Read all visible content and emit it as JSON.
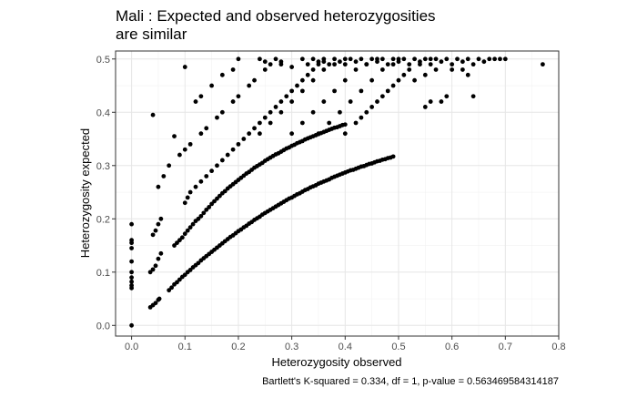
{
  "chart_data": {
    "type": "scatter",
    "title_lines": [
      "Mali : Expected and observed heterozygosities",
      "are similar"
    ],
    "xlabel": "Heterozygosity observed",
    "ylabel": "Heterozygosity expected",
    "caption": "Bartlett's K-squared = 0.334, df = 1, p-value = 0.563469584314187",
    "xlim": [
      -0.03,
      0.8
    ],
    "ylim": [
      -0.02,
      0.515
    ],
    "x_ticks": [
      0.0,
      0.1,
      0.2,
      0.3,
      0.4,
      0.5,
      0.6,
      0.7,
      0.8
    ],
    "x_tick_labels": [
      "0.0",
      "0.1",
      "0.2",
      "0.3",
      "0.4",
      "0.5",
      "0.6",
      "0.7",
      "0.8"
    ],
    "y_ticks": [
      0.0,
      0.1,
      0.2,
      0.3,
      0.4,
      0.5
    ],
    "y_tick_labels": [
      "0.0",
      "0.1",
      "0.2",
      "0.3",
      "0.4",
      "0.5"
    ],
    "grid": true,
    "point_color": "#000000",
    "panel_border_color": "#333333",
    "grid_major_color": "#e6e6e6",
    "grid_minor_color": "#f2f2f2",
    "points": [
      [
        0.0,
        0.0
      ],
      [
        0.0,
        0.07
      ],
      [
        0.0,
        0.075
      ],
      [
        0.0,
        0.082
      ],
      [
        0.0,
        0.09
      ],
      [
        0.0,
        0.1
      ],
      [
        0.0,
        0.12
      ],
      [
        0.0,
        0.145
      ],
      [
        0.0,
        0.155
      ],
      [
        0.0,
        0.16
      ],
      [
        0.0,
        0.19
      ],
      [
        0.035,
        0.034
      ],
      [
        0.04,
        0.038
      ],
      [
        0.045,
        0.042
      ],
      [
        0.05,
        0.048
      ],
      [
        0.052,
        0.05
      ],
      [
        0.07,
        0.066
      ],
      [
        0.075,
        0.071
      ],
      [
        0.08,
        0.077
      ],
      [
        0.085,
        0.081
      ],
      [
        0.09,
        0.086
      ],
      [
        0.095,
        0.091
      ],
      [
        0.1,
        0.095
      ],
      [
        0.105,
        0.1
      ],
      [
        0.11,
        0.104
      ],
      [
        0.115,
        0.109
      ],
      [
        0.12,
        0.113
      ],
      [
        0.125,
        0.117
      ],
      [
        0.13,
        0.122
      ],
      [
        0.135,
        0.126
      ],
      [
        0.14,
        0.13
      ],
      [
        0.145,
        0.134
      ],
      [
        0.15,
        0.138
      ],
      [
        0.155,
        0.142
      ],
      [
        0.16,
        0.146
      ],
      [
        0.165,
        0.15
      ],
      [
        0.17,
        0.154
      ],
      [
        0.175,
        0.158
      ],
      [
        0.18,
        0.162
      ],
      [
        0.185,
        0.166
      ],
      [
        0.19,
        0.169
      ],
      [
        0.195,
        0.173
      ],
      [
        0.2,
        0.177
      ],
      [
        0.205,
        0.18
      ],
      [
        0.21,
        0.184
      ],
      [
        0.215,
        0.187
      ],
      [
        0.22,
        0.191
      ],
      [
        0.225,
        0.194
      ],
      [
        0.23,
        0.198
      ],
      [
        0.235,
        0.201
      ],
      [
        0.24,
        0.204
      ],
      [
        0.245,
        0.208
      ],
      [
        0.25,
        0.211
      ],
      [
        0.255,
        0.214
      ],
      [
        0.26,
        0.217
      ],
      [
        0.265,
        0.22
      ],
      [
        0.27,
        0.223
      ],
      [
        0.275,
        0.226
      ],
      [
        0.28,
        0.229
      ],
      [
        0.285,
        0.232
      ],
      [
        0.29,
        0.235
      ],
      [
        0.295,
        0.238
      ],
      [
        0.3,
        0.24
      ],
      [
        0.305,
        0.243
      ],
      [
        0.31,
        0.246
      ],
      [
        0.315,
        0.248
      ],
      [
        0.32,
        0.251
      ],
      [
        0.325,
        0.254
      ],
      [
        0.33,
        0.256
      ],
      [
        0.335,
        0.259
      ],
      [
        0.34,
        0.261
      ],
      [
        0.345,
        0.263
      ],
      [
        0.35,
        0.266
      ],
      [
        0.355,
        0.268
      ],
      [
        0.36,
        0.27
      ],
      [
        0.365,
        0.272
      ],
      [
        0.37,
        0.274
      ],
      [
        0.375,
        0.277
      ],
      [
        0.38,
        0.279
      ],
      [
        0.385,
        0.281
      ],
      [
        0.39,
        0.283
      ],
      [
        0.395,
        0.285
      ],
      [
        0.4,
        0.287
      ],
      [
        0.405,
        0.289
      ],
      [
        0.41,
        0.291
      ],
      [
        0.415,
        0.292
      ],
      [
        0.42,
        0.294
      ],
      [
        0.425,
        0.296
      ],
      [
        0.43,
        0.298
      ],
      [
        0.435,
        0.299
      ],
      [
        0.44,
        0.301
      ],
      [
        0.445,
        0.303
      ],
      [
        0.45,
        0.304
      ],
      [
        0.455,
        0.306
      ],
      [
        0.46,
        0.308
      ],
      [
        0.465,
        0.309
      ],
      [
        0.47,
        0.311
      ],
      [
        0.475,
        0.312
      ],
      [
        0.48,
        0.314
      ],
      [
        0.485,
        0.315
      ],
      [
        0.49,
        0.317
      ],
      [
        0.035,
        0.1
      ],
      [
        0.04,
        0.105
      ],
      [
        0.045,
        0.112
      ],
      [
        0.05,
        0.125
      ],
      [
        0.055,
        0.135
      ],
      [
        0.04,
        0.17
      ],
      [
        0.045,
        0.178
      ],
      [
        0.05,
        0.19
      ],
      [
        0.055,
        0.2
      ],
      [
        0.08,
        0.15
      ],
      [
        0.085,
        0.155
      ],
      [
        0.09,
        0.16
      ],
      [
        0.095,
        0.165
      ],
      [
        0.1,
        0.172
      ],
      [
        0.105,
        0.178
      ],
      [
        0.11,
        0.184
      ],
      [
        0.115,
        0.19
      ],
      [
        0.12,
        0.196
      ],
      [
        0.125,
        0.2
      ],
      [
        0.13,
        0.205
      ],
      [
        0.135,
        0.211
      ],
      [
        0.14,
        0.217
      ],
      [
        0.145,
        0.222
      ],
      [
        0.15,
        0.228
      ],
      [
        0.155,
        0.233
      ],
      [
        0.16,
        0.238
      ],
      [
        0.165,
        0.243
      ],
      [
        0.17,
        0.248
      ],
      [
        0.175,
        0.252
      ],
      [
        0.18,
        0.257
      ],
      [
        0.185,
        0.261
      ],
      [
        0.19,
        0.265
      ],
      [
        0.195,
        0.269
      ],
      [
        0.2,
        0.273
      ],
      [
        0.205,
        0.277
      ],
      [
        0.21,
        0.281
      ],
      [
        0.215,
        0.285
      ],
      [
        0.22,
        0.288
      ],
      [
        0.225,
        0.292
      ],
      [
        0.23,
        0.296
      ],
      [
        0.235,
        0.299
      ],
      [
        0.24,
        0.302
      ],
      [
        0.245,
        0.305
      ],
      [
        0.25,
        0.309
      ],
      [
        0.255,
        0.312
      ],
      [
        0.26,
        0.315
      ],
      [
        0.265,
        0.318
      ],
      [
        0.27,
        0.321
      ],
      [
        0.275,
        0.323
      ],
      [
        0.28,
        0.326
      ],
      [
        0.285,
        0.329
      ],
      [
        0.29,
        0.332
      ],
      [
        0.295,
        0.334
      ],
      [
        0.3,
        0.337
      ],
      [
        0.305,
        0.339
      ],
      [
        0.31,
        0.342
      ],
      [
        0.315,
        0.344
      ],
      [
        0.32,
        0.346
      ],
      [
        0.325,
        0.349
      ],
      [
        0.33,
        0.351
      ],
      [
        0.335,
        0.353
      ],
      [
        0.34,
        0.355
      ],
      [
        0.345,
        0.357
      ],
      [
        0.35,
        0.359
      ],
      [
        0.355,
        0.361
      ],
      [
        0.36,
        0.363
      ],
      [
        0.365,
        0.365
      ],
      [
        0.37,
        0.367
      ],
      [
        0.375,
        0.369
      ],
      [
        0.38,
        0.371
      ],
      [
        0.385,
        0.372
      ],
      [
        0.39,
        0.374
      ],
      [
        0.395,
        0.376
      ],
      [
        0.4,
        0.377
      ],
      [
        0.1,
        0.23
      ],
      [
        0.105,
        0.24
      ],
      [
        0.11,
        0.25
      ],
      [
        0.12,
        0.26
      ],
      [
        0.13,
        0.27
      ],
      [
        0.14,
        0.28
      ],
      [
        0.15,
        0.29
      ],
      [
        0.16,
        0.3
      ],
      [
        0.17,
        0.31
      ],
      [
        0.18,
        0.32
      ],
      [
        0.19,
        0.33
      ],
      [
        0.2,
        0.34
      ],
      [
        0.21,
        0.35
      ],
      [
        0.22,
        0.36
      ],
      [
        0.23,
        0.37
      ],
      [
        0.24,
        0.38
      ],
      [
        0.25,
        0.39
      ],
      [
        0.26,
        0.4
      ],
      [
        0.27,
        0.41
      ],
      [
        0.28,
        0.42
      ],
      [
        0.29,
        0.43
      ],
      [
        0.3,
        0.44
      ],
      [
        0.31,
        0.45
      ],
      [
        0.32,
        0.46
      ],
      [
        0.33,
        0.47
      ],
      [
        0.34,
        0.48
      ],
      [
        0.35,
        0.49
      ],
      [
        0.36,
        0.495
      ],
      [
        0.05,
        0.26
      ],
      [
        0.06,
        0.28
      ],
      [
        0.07,
        0.3
      ],
      [
        0.09,
        0.32
      ],
      [
        0.1,
        0.33
      ],
      [
        0.11,
        0.34
      ],
      [
        0.13,
        0.36
      ],
      [
        0.14,
        0.37
      ],
      [
        0.16,
        0.39
      ],
      [
        0.17,
        0.4
      ],
      [
        0.19,
        0.42
      ],
      [
        0.2,
        0.43
      ],
      [
        0.22,
        0.45
      ],
      [
        0.23,
        0.46
      ],
      [
        0.25,
        0.48
      ],
      [
        0.26,
        0.49
      ],
      [
        0.28,
        0.495
      ],
      [
        0.04,
        0.395
      ],
      [
        0.08,
        0.355
      ],
      [
        0.1,
        0.485
      ],
      [
        0.12,
        0.42
      ],
      [
        0.13,
        0.43
      ],
      [
        0.15,
        0.45
      ],
      [
        0.17,
        0.47
      ],
      [
        0.19,
        0.48
      ],
      [
        0.2,
        0.5
      ],
      [
        0.24,
        0.5
      ],
      [
        0.25,
        0.495
      ],
      [
        0.27,
        0.5
      ],
      [
        0.28,
        0.49
      ],
      [
        0.24,
        0.36
      ],
      [
        0.26,
        0.38
      ],
      [
        0.28,
        0.4
      ],
      [
        0.3,
        0.42
      ],
      [
        0.32,
        0.44
      ],
      [
        0.34,
        0.46
      ],
      [
        0.36,
        0.48
      ],
      [
        0.38,
        0.49
      ],
      [
        0.4,
        0.5
      ],
      [
        0.3,
        0.36
      ],
      [
        0.32,
        0.38
      ],
      [
        0.34,
        0.4
      ],
      [
        0.36,
        0.42
      ],
      [
        0.38,
        0.44
      ],
      [
        0.4,
        0.46
      ],
      [
        0.42,
        0.48
      ],
      [
        0.44,
        0.49
      ],
      [
        0.46,
        0.5
      ],
      [
        0.35,
        0.36
      ],
      [
        0.37,
        0.38
      ],
      [
        0.39,
        0.4
      ],
      [
        0.41,
        0.42
      ],
      [
        0.43,
        0.44
      ],
      [
        0.45,
        0.46
      ],
      [
        0.47,
        0.48
      ],
      [
        0.49,
        0.49
      ],
      [
        0.5,
        0.5
      ],
      [
        0.4,
        0.36
      ],
      [
        0.42,
        0.38
      ],
      [
        0.44,
        0.4
      ],
      [
        0.46,
        0.42
      ],
      [
        0.48,
        0.44
      ],
      [
        0.5,
        0.46
      ],
      [
        0.52,
        0.48
      ],
      [
        0.54,
        0.49
      ],
      [
        0.56,
        0.5
      ],
      [
        0.43,
        0.39
      ],
      [
        0.45,
        0.41
      ],
      [
        0.47,
        0.43
      ],
      [
        0.49,
        0.45
      ],
      [
        0.3,
        0.485
      ],
      [
        0.32,
        0.5
      ],
      [
        0.33,
        0.49
      ],
      [
        0.34,
        0.5
      ],
      [
        0.35,
        0.495
      ],
      [
        0.36,
        0.5
      ],
      [
        0.37,
        0.49
      ],
      [
        0.38,
        0.5
      ],
      [
        0.39,
        0.495
      ],
      [
        0.4,
        0.49
      ],
      [
        0.41,
        0.5
      ],
      [
        0.42,
        0.495
      ],
      [
        0.43,
        0.5
      ],
      [
        0.44,
        0.49
      ],
      [
        0.45,
        0.5
      ],
      [
        0.46,
        0.495
      ],
      [
        0.47,
        0.5
      ],
      [
        0.48,
        0.49
      ],
      [
        0.49,
        0.5
      ],
      [
        0.5,
        0.495
      ],
      [
        0.51,
        0.5
      ],
      [
        0.52,
        0.49
      ],
      [
        0.53,
        0.5
      ],
      [
        0.54,
        0.495
      ],
      [
        0.55,
        0.5
      ],
      [
        0.56,
        0.49
      ],
      [
        0.57,
        0.5
      ],
      [
        0.58,
        0.495
      ],
      [
        0.59,
        0.5
      ],
      [
        0.6,
        0.49
      ],
      [
        0.61,
        0.5
      ],
      [
        0.62,
        0.495
      ],
      [
        0.63,
        0.5
      ],
      [
        0.64,
        0.49
      ],
      [
        0.65,
        0.5
      ],
      [
        0.66,
        0.495
      ],
      [
        0.67,
        0.5
      ],
      [
        0.68,
        0.5
      ],
      [
        0.69,
        0.5
      ],
      [
        0.7,
        0.5
      ],
      [
        0.77,
        0.49
      ],
      [
        0.51,
        0.47
      ],
      [
        0.53,
        0.46
      ],
      [
        0.55,
        0.47
      ],
      [
        0.57,
        0.48
      ],
      [
        0.6,
        0.48
      ],
      [
        0.62,
        0.48
      ],
      [
        0.63,
        0.47
      ],
      [
        0.64,
        0.43
      ],
      [
        0.58,
        0.42
      ],
      [
        0.59,
        0.43
      ],
      [
        0.55,
        0.41
      ],
      [
        0.56,
        0.42
      ]
    ]
  }
}
